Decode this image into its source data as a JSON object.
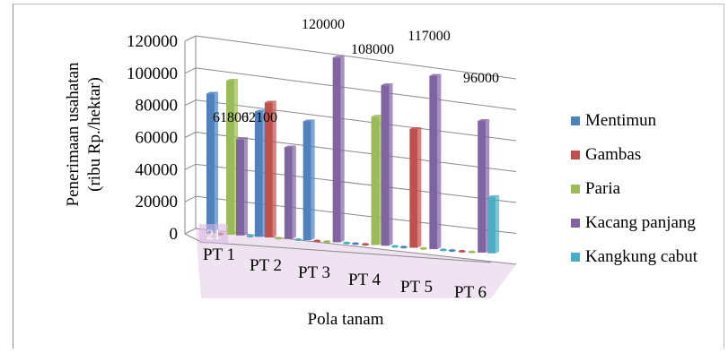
{
  "chart_data": {
    "type": "bar",
    "title": "",
    "xlabel": "Pola tanam",
    "ylabel_lines": [
      "Penerimaan usahatan",
      "(ribu Rp./hektar)"
    ],
    "ylim": [
      0,
      120000
    ],
    "yticks": [
      "0",
      "20000",
      "40000",
      "60000",
      "80000",
      "100000",
      "120000"
    ],
    "categories": [
      "PT 1",
      "PT 2",
      "PT 3",
      "PT 4",
      "PT 5",
      "PT 6"
    ],
    "series": [
      {
        "name": "Mentimun",
        "color": "#4f81bd",
        "values": [
          87000,
          78000,
          74000,
          0,
          0,
          0
        ]
      },
      {
        "name": "Gambas",
        "color": "#c0504d",
        "values": [
          0,
          84000,
          0,
          0,
          74000,
          0
        ]
      },
      {
        "name": "Paria",
        "color": "#9bbb59",
        "values": [
          96000,
          0,
          0,
          80000,
          0,
          0
        ]
      },
      {
        "name": "Kacang panjang",
        "color": "#8064a2",
        "values": [
          60000,
          57000,
          115000,
          100000,
          108000,
          82000
        ]
      },
      {
        "name": "Kangkung cabut",
        "color": "#4bacc6",
        "values": [
          0,
          0,
          0,
          0,
          0,
          35000
        ]
      }
    ],
    "data_labels": [
      "61800",
      "62100",
      "120000",
      "108000",
      "117000",
      "96000"
    ],
    "stray_label": "21",
    "grid": true,
    "legend_position": "right"
  }
}
